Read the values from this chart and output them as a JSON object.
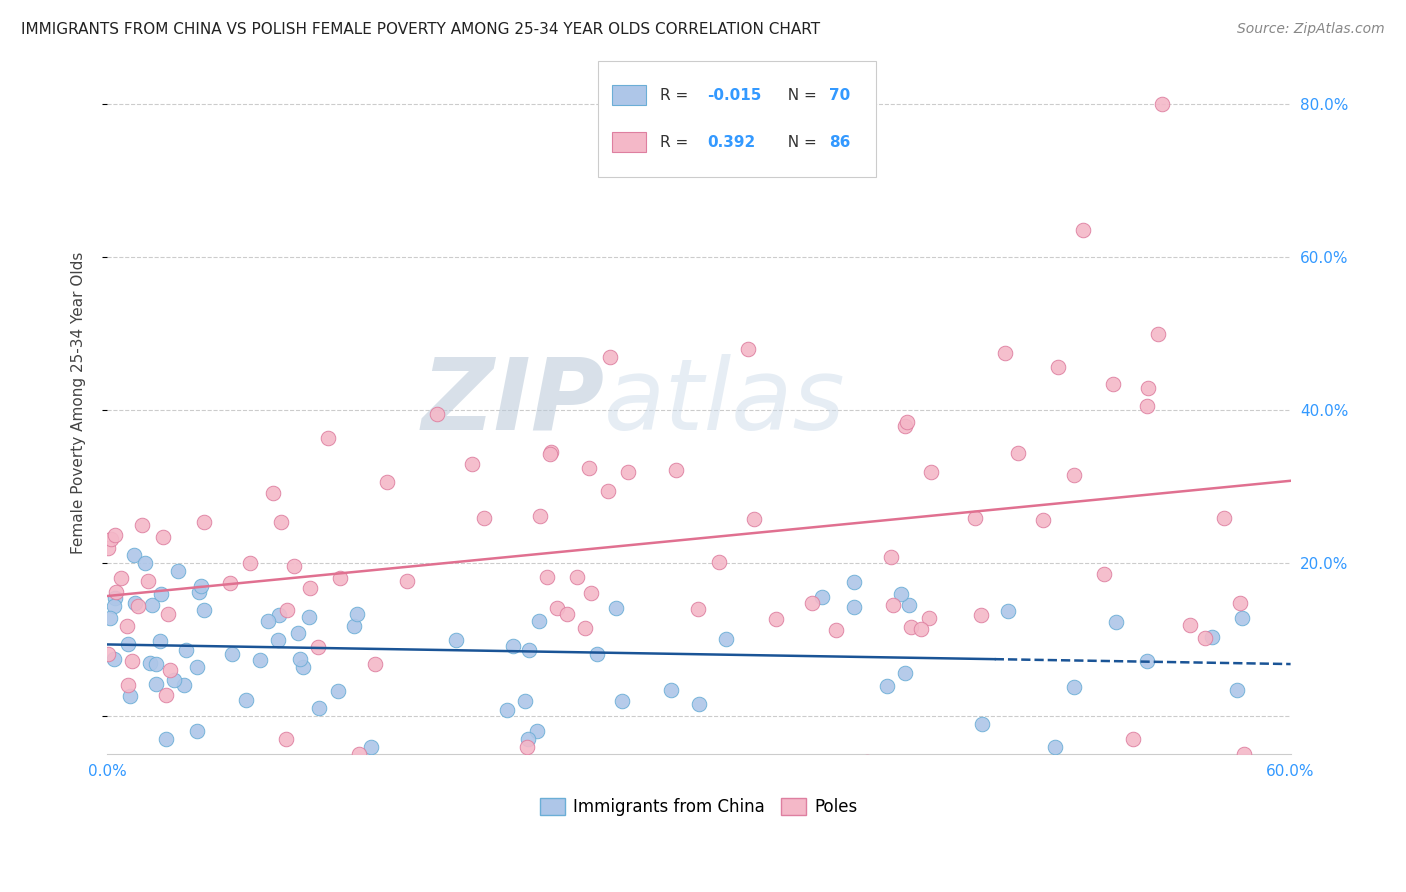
{
  "title": "IMMIGRANTS FROM CHINA VS POLISH FEMALE POVERTY AMONG 25-34 YEAR OLDS CORRELATION CHART",
  "source": "Source: ZipAtlas.com",
  "ylabel": "Female Poverty Among 25-34 Year Olds",
  "xlim": [
    0.0,
    0.6
  ],
  "ylim": [
    -0.05,
    0.87
  ],
  "yticks": [
    0.0,
    0.2,
    0.4,
    0.6,
    0.8
  ],
  "ytick_labels": [
    "",
    "20.0%",
    "40.0%",
    "60.0%",
    "80.0%"
  ],
  "xticks": [
    0.0,
    0.1,
    0.2,
    0.3,
    0.4,
    0.5,
    0.6
  ],
  "xtick_labels": [
    "0.0%",
    "",
    "",
    "",
    "",
    "",
    "60.0%"
  ],
  "china_R": -0.015,
  "china_N": 70,
  "poles_R": 0.392,
  "poles_N": 86,
  "china_color": "#aec6e8",
  "china_edge_color": "#6baed6",
  "poles_color": "#f4b8c8",
  "poles_edge_color": "#de7fa0",
  "trend_china_color": "#1a5496",
  "trend_poles_color": "#e07090",
  "watermark_zip": "ZIP",
  "watermark_atlas": "atlas",
  "background_color": "#ffffff",
  "grid_color": "#cccccc"
}
